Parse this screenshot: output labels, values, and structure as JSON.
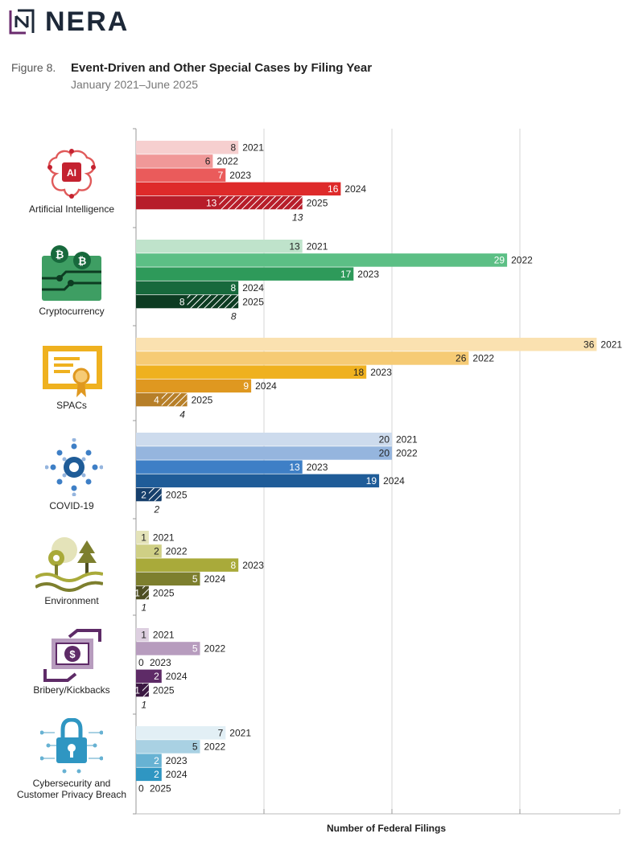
{
  "header": {
    "logo_text": "NERA",
    "figure_label": "Figure 8.",
    "title": "Event-Driven and Other Special Cases by Filing Year",
    "subtitle": "January 2021–June 2025"
  },
  "chart_data": {
    "type": "bar",
    "orientation": "horizontal",
    "title": "Event-Driven and Other Special Cases by Filing Year",
    "subtitle": "January 2021–June 2025",
    "xlabel": "Number of Federal Filings",
    "xlim": [
      0,
      38
    ],
    "grid": true,
    "categories": [
      {
        "name": "Artificial Intelligence",
        "icon": "ai-brain-icon",
        "bars": [
          {
            "year": "2021",
            "value": 8,
            "color": "#f6cfcf"
          },
          {
            "year": "2022",
            "value": 6,
            "color": "#f09898"
          },
          {
            "year": "2023",
            "value": 7,
            "color": "#ea5b5b"
          },
          {
            "year": "2024",
            "value": 16,
            "color": "#de2a2a"
          },
          {
            "year": "2025",
            "value": 13,
            "color": "#b71d2a",
            "projected": 13
          }
        ]
      },
      {
        "name": "Cryptocurrency",
        "icon": "cryptocurrency-icon",
        "bars": [
          {
            "year": "2021",
            "value": 13,
            "color": "#bfe3cb"
          },
          {
            "year": "2022",
            "value": 29,
            "color": "#5cbf85"
          },
          {
            "year": "2023",
            "value": 17,
            "color": "#2e9a5a"
          },
          {
            "year": "2024",
            "value": 8,
            "color": "#17693c"
          },
          {
            "year": "2025",
            "value": 8,
            "color": "#0d3c22",
            "projected": 8
          }
        ]
      },
      {
        "name": "SPACs",
        "icon": "certificate-icon",
        "bars": [
          {
            "year": "2021",
            "value": 36,
            "color": "#fae1b0"
          },
          {
            "year": "2022",
            "value": 26,
            "color": "#f6cb75"
          },
          {
            "year": "2023",
            "value": 18,
            "color": "#efb11f"
          },
          {
            "year": "2024",
            "value": 9,
            "color": "#df9820"
          },
          {
            "year": "2025",
            "value": 4,
            "color": "#b77f28",
            "projected": 4
          }
        ]
      },
      {
        "name": "COVID-19",
        "icon": "virus-icon",
        "bars": [
          {
            "year": "2021",
            "value": 20,
            "color": "#cddbed"
          },
          {
            "year": "2022",
            "value": 20,
            "color": "#95b5de"
          },
          {
            "year": "2023",
            "value": 13,
            "color": "#3e7fc6"
          },
          {
            "year": "2024",
            "value": 19,
            "color": "#1f5c98"
          },
          {
            "year": "2025",
            "value": 2,
            "color": "#163f6c",
            "projected": 2
          }
        ]
      },
      {
        "name": "Environment",
        "icon": "environment-icon",
        "bars": [
          {
            "year": "2021",
            "value": 1,
            "color": "#e4e3b9"
          },
          {
            "year": "2022",
            "value": 2,
            "color": "#cfcf85"
          },
          {
            "year": "2023",
            "value": 8,
            "color": "#a9aa3a"
          },
          {
            "year": "2024",
            "value": 5,
            "color": "#7d7f2e"
          },
          {
            "year": "2025",
            "value": 1,
            "color": "#4e4f22",
            "projected": 1
          }
        ]
      },
      {
        "name": "Bribery/Kickbacks",
        "icon": "bribery-icon",
        "bars": [
          {
            "year": "2021",
            "value": 1,
            "color": "#ddcfe0"
          },
          {
            "year": "2022",
            "value": 5,
            "color": "#b79cbe"
          },
          {
            "year": "2023",
            "value": 0,
            "color": "#8c6596"
          },
          {
            "year": "2024",
            "value": 2,
            "color": "#5e2b67"
          },
          {
            "year": "2025",
            "value": 1,
            "color": "#3b1842",
            "projected": 1
          }
        ]
      },
      {
        "name": "Cybersecurity and Customer Privacy Breach",
        "label_lines": [
          "Cybersecurity and",
          "Customer Privacy Breach"
        ],
        "icon": "padlock-icon",
        "bars": [
          {
            "year": "2021",
            "value": 7,
            "color": "#e2eff5"
          },
          {
            "year": "2022",
            "value": 5,
            "color": "#a9d1e3"
          },
          {
            "year": "2023",
            "value": 2,
            "color": "#67b2d3"
          },
          {
            "year": "2024",
            "value": 2,
            "color": "#2f96c2"
          },
          {
            "year": "2025",
            "value": 0,
            "color": "#1d7aa2"
          }
        ]
      }
    ]
  }
}
